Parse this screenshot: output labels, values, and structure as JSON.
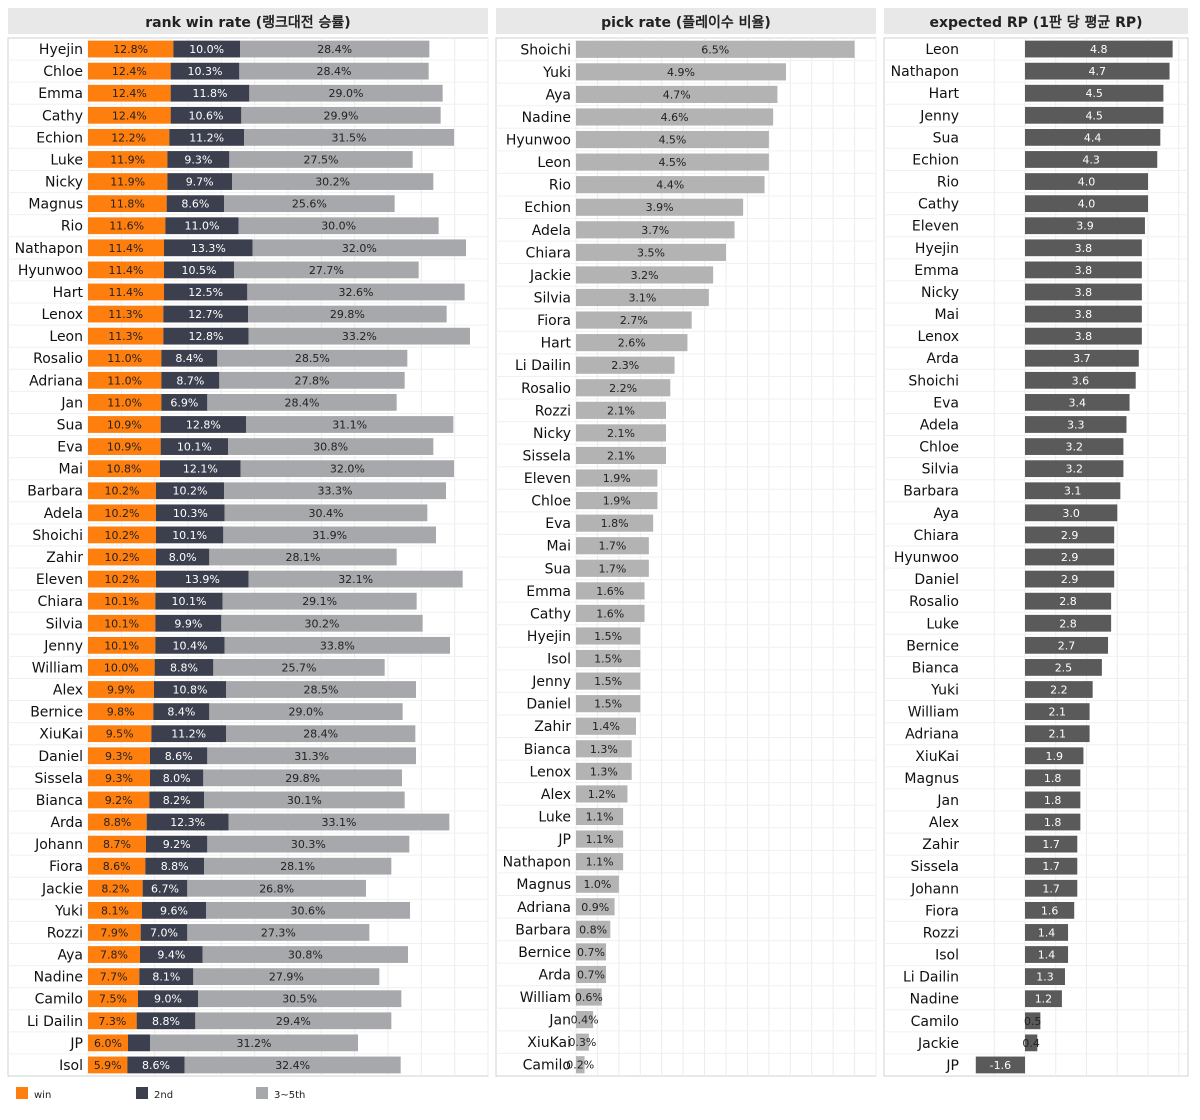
{
  "legend": [
    {
      "key": "win",
      "label": "win",
      "color": "#ff7f0e"
    },
    {
      "key": "second",
      "label": "2nd",
      "color": "#3c3f4d"
    },
    {
      "key": "third_fifth",
      "label": "3~5th",
      "color": "#a6a8ab"
    }
  ],
  "chart_data": [
    {
      "type": "bar",
      "stacked": true,
      "orientation": "horizontal",
      "title": "rank win rate (랭크대전 승률)",
      "color_win": "#ff7f0e",
      "color_2nd": "#3c3f4d",
      "color_3to5": "#a6a8ab",
      "categories": [
        "Hyejin",
        "Chloe",
        "Emma",
        "Cathy",
        "Echion",
        "Luke",
        "Nicky",
        "Magnus",
        "Rio",
        "Nathapon",
        "Hyunwoo",
        "Hart",
        "Lenox",
        "Leon",
        "Rosalio",
        "Adriana",
        "Jan",
        "Sua",
        "Eva",
        "Mai",
        "Barbara",
        "Adela",
        "Shoichi",
        "Zahir",
        "Eleven",
        "Chiara",
        "Silvia",
        "Jenny",
        "William",
        "Alex",
        "Bernice",
        "XiuKai",
        "Daniel",
        "Sissela",
        "Bianca",
        "Arda",
        "Johann",
        "Fiora",
        "Jackie",
        "Yuki",
        "Rozzi",
        "Aya",
        "Nadine",
        "Camilo",
        "Li Dailin",
        "JP",
        "Isol"
      ],
      "series": [
        {
          "name": "win",
          "values": [
            12.8,
            12.4,
            12.4,
            12.4,
            12.2,
            11.9,
            11.9,
            11.8,
            11.6,
            11.4,
            11.4,
            11.4,
            11.3,
            11.3,
            11.0,
            11.0,
            11.0,
            10.9,
            10.9,
            10.8,
            10.2,
            10.2,
            10.2,
            10.2,
            10.2,
            10.1,
            10.1,
            10.1,
            10.0,
            9.9,
            9.8,
            9.5,
            9.3,
            9.3,
            9.2,
            8.8,
            8.7,
            8.6,
            8.2,
            8.1,
            7.9,
            7.8,
            7.7,
            7.5,
            7.3,
            6.0,
            5.9
          ]
        },
        {
          "name": "2nd",
          "values": [
            10.0,
            10.3,
            11.8,
            10.6,
            11.2,
            9.3,
            9.7,
            8.6,
            11.0,
            13.3,
            10.5,
            12.5,
            12.7,
            12.8,
            8.4,
            8.7,
            6.9,
            12.8,
            10.1,
            12.1,
            10.2,
            10.3,
            10.1,
            8.0,
            13.9,
            10.1,
            9.9,
            10.4,
            8.8,
            10.8,
            8.4,
            11.2,
            8.6,
            8.0,
            8.2,
            12.3,
            9.2,
            8.8,
            6.7,
            9.6,
            7.0,
            9.4,
            8.1,
            9.0,
            8.8,
            3.3,
            8.6
          ]
        },
        {
          "name": "3~5th",
          "values": [
            28.4,
            28.4,
            29.0,
            29.9,
            31.5,
            27.5,
            30.2,
            25.6,
            30.0,
            32.0,
            27.7,
            32.6,
            29.8,
            33.2,
            28.5,
            27.8,
            28.4,
            31.1,
            30.8,
            32.0,
            33.3,
            30.4,
            31.9,
            28.1,
            32.1,
            29.1,
            30.2,
            33.8,
            25.7,
            28.5,
            29.0,
            28.4,
            31.3,
            29.8,
            30.1,
            33.1,
            30.3,
            28.1,
            26.8,
            30.6,
            27.3,
            30.8,
            27.9,
            30.5,
            29.4,
            31.2,
            32.4
          ]
        }
      ],
      "value_labels": {
        "win": [
          "12.8%",
          "12.4%",
          "12.4%",
          "12.4%",
          "12.2%",
          "11.9%",
          "11.9%",
          "11.8%",
          "11.6%",
          "11.4%",
          "11.4%",
          "11.4%",
          "11.3%",
          "11.3%",
          "11.0%",
          "11.0%",
          "11.0%",
          "10.9%",
          "10.9%",
          "10.8%",
          "10.2%",
          "10.2%",
          "10.2%",
          "10.2%",
          "10.2%",
          "10.1%",
          "10.1%",
          "10.1%",
          "10.0%",
          "9.9%",
          "9.8%",
          "9.5%",
          "9.3%",
          "9.3%",
          "9.2%",
          "8.8%",
          "8.7%",
          "8.6%",
          "8.2%",
          "8.1%",
          "7.9%",
          "7.8%",
          "7.7%",
          "7.5%",
          "7.3%",
          "6.0%",
          "5.9%"
        ],
        "2nd": [
          "10.0%",
          "10.3%",
          "11.8%",
          "10.6%",
          "11.2%",
          "9.3%",
          "9.7%",
          "8.6%",
          "11.0%",
          "13.3%",
          "10.5%",
          "12.5%",
          "12.7%",
          "12.8%",
          "8.4%",
          "8.7%",
          "6.9%",
          "12.8%",
          "10.1%",
          "12.1%",
          "10.2%",
          "10.3%",
          "10.1%",
          "8.0%",
          "13.9%",
          "10.1%",
          "9.9%",
          "10.4%",
          "8.8%",
          "10.8%",
          "8.4%",
          "11.2%",
          "8.6%",
          "8.0%",
          "8.2%",
          "12.3%",
          "9.2%",
          "8.8%",
          "6.7%",
          "9.6%",
          "7.0%",
          "9.4%",
          "8.1%",
          "9.0%",
          "8.8%",
          "",
          "8.6%"
        ],
        "3~5th": [
          "28.4%",
          "28.4%",
          "29.0%",
          "29.9%",
          "31.5%",
          "27.5%",
          "30.2%",
          "25.6%",
          "30.0%",
          "32.0%",
          "27.7%",
          "32.6%",
          "29.8%",
          "33.2%",
          "28.5%",
          "27.8%",
          "28.4%",
          "31.1%",
          "30.8%",
          "32.0%",
          "33.3%",
          "30.4%",
          "31.9%",
          "28.1%",
          "32.1%",
          "29.1%",
          "30.2%",
          "33.8%",
          "25.7%",
          "28.5%",
          "29.0%",
          "28.4%",
          "31.3%",
          "29.8%",
          "30.1%",
          "33.1%",
          "30.3%",
          "28.1%",
          "26.8%",
          "30.6%",
          "27.3%",
          "30.8%",
          "27.9%",
          "30.5%",
          "29.4%",
          "31.2%",
          "32.4%"
        ]
      },
      "xlim": [
        0,
        60
      ],
      "grid": true
    },
    {
      "type": "bar",
      "orientation": "horizontal",
      "title": "pick rate (플레이수 비율)",
      "color": "#b3b3b3",
      "categories": [
        "Shoichi",
        "Yuki",
        "Aya",
        "Nadine",
        "Hyunwoo",
        "Leon",
        "Rio",
        "Echion",
        "Adela",
        "Chiara",
        "Jackie",
        "Silvia",
        "Fiora",
        "Hart",
        "Li Dailin",
        "Rosalio",
        "Rozzi",
        "Nicky",
        "Sissela",
        "Eleven",
        "Chloe",
        "Eva",
        "Mai",
        "Sua",
        "Emma",
        "Cathy",
        "Hyejin",
        "Isol",
        "Jenny",
        "Daniel",
        "Zahir",
        "Bianca",
        "Lenox",
        "Alex",
        "Luke",
        "JP",
        "Nathapon",
        "Magnus",
        "Adriana",
        "Barbara",
        "Bernice",
        "Arda",
        "William",
        "Jan",
        "XiuKai",
        "Camilo"
      ],
      "values": [
        6.5,
        4.9,
        4.7,
        4.6,
        4.5,
        4.5,
        4.4,
        3.9,
        3.7,
        3.5,
        3.2,
        3.1,
        2.7,
        2.6,
        2.3,
        2.2,
        2.1,
        2.1,
        2.1,
        1.9,
        1.9,
        1.8,
        1.7,
        1.7,
        1.6,
        1.6,
        1.5,
        1.5,
        1.5,
        1.5,
        1.4,
        1.3,
        1.3,
        1.2,
        1.1,
        1.1,
        1.1,
        1.0,
        0.9,
        0.8,
        0.7,
        0.7,
        0.6,
        0.4,
        0.3,
        0.2
      ],
      "value_labels": [
        "6.5%",
        "4.9%",
        "4.7%",
        "4.6%",
        "4.5%",
        "4.5%",
        "4.4%",
        "3.9%",
        "3.7%",
        "3.5%",
        "3.2%",
        "3.1%",
        "2.7%",
        "2.6%",
        "2.3%",
        "2.2%",
        "2.1%",
        "2.1%",
        "2.1%",
        "1.9%",
        "1.9%",
        "1.8%",
        "1.7%",
        "1.7%",
        "1.6%",
        "1.6%",
        "1.5%",
        "1.5%",
        "1.5%",
        "1.5%",
        "1.4%",
        "1.3%",
        "1.3%",
        "1.2%",
        "1.1%",
        "1.1%",
        "1.1%",
        "1.0%",
        "0.9%",
        "0.8%",
        "0.7%",
        "0.7%",
        "0.6%",
        "0.4%",
        "0.3%",
        "0.2%"
      ],
      "xlim": [
        0,
        7.0
      ],
      "grid": true
    },
    {
      "type": "bar",
      "orientation": "horizontal",
      "title": "expected RP (1판 당 평균 RP)",
      "color": "#5a5a5a",
      "categories": [
        "Leon",
        "Nathapon",
        "Hart",
        "Jenny",
        "Sua",
        "Echion",
        "Rio",
        "Cathy",
        "Eleven",
        "Hyejin",
        "Emma",
        "Nicky",
        "Mai",
        "Lenox",
        "Arda",
        "Shoichi",
        "Eva",
        "Adela",
        "Chloe",
        "Silvia",
        "Barbara",
        "Aya",
        "Chiara",
        "Hyunwoo",
        "Daniel",
        "Rosalio",
        "Luke",
        "Bernice",
        "Bianca",
        "Yuki",
        "William",
        "Adriana",
        "XiuKai",
        "Magnus",
        "Jan",
        "Alex",
        "Zahir",
        "Sissela",
        "Johann",
        "Fiora",
        "Rozzi",
        "Isol",
        "Li Dailin",
        "Nadine",
        "Camilo",
        "Jackie",
        "JP"
      ],
      "values": [
        4.8,
        4.7,
        4.5,
        4.5,
        4.4,
        4.3,
        4.0,
        4.0,
        3.9,
        3.8,
        3.8,
        3.8,
        3.8,
        3.8,
        3.7,
        3.6,
        3.4,
        3.3,
        3.2,
        3.2,
        3.1,
        3.0,
        2.9,
        2.9,
        2.9,
        2.8,
        2.8,
        2.7,
        2.5,
        2.2,
        2.1,
        2.1,
        1.9,
        1.8,
        1.8,
        1.8,
        1.7,
        1.7,
        1.7,
        1.6,
        1.4,
        1.4,
        1.3,
        1.2,
        0.5,
        0.4,
        -1.6
      ],
      "value_labels": [
        "4.8",
        "4.7",
        "4.5",
        "4.5",
        "4.4",
        "4.3",
        "4.0",
        "4.0",
        "3.9",
        "3.8",
        "3.8",
        "3.8",
        "3.8",
        "3.8",
        "3.7",
        "3.6",
        "3.4",
        "3.3",
        "3.2",
        "3.2",
        "3.1",
        "3.0",
        "2.9",
        "2.9",
        "2.9",
        "2.8",
        "2.8",
        "2.7",
        "2.5",
        "2.2",
        "2.1",
        "2.1",
        "1.9",
        "1.8",
        "1.8",
        "1.8",
        "1.7",
        "1.7",
        "1.7",
        "1.6",
        "1.4",
        "1.4",
        "1.3",
        "1.2",
        "0.5",
        "0.4",
        "-1.6"
      ],
      "xlim": [
        -2.0,
        5.3
      ],
      "grid": true
    }
  ]
}
